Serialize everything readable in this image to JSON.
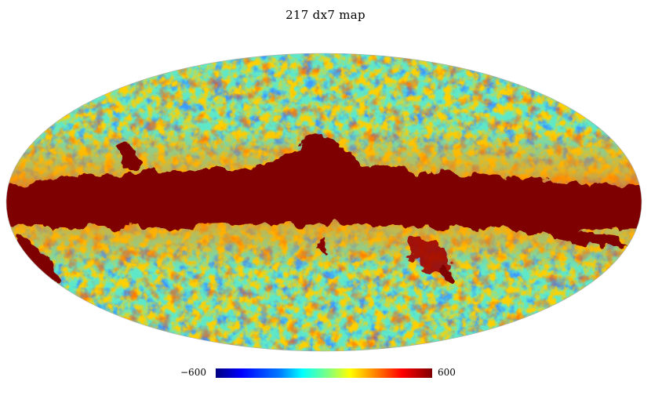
{
  "title": "217 dx7 map",
  "projection": "mollweide",
  "colormap": {
    "name": "jet",
    "min_label": "−600",
    "max_label": "600",
    "min_value": -600,
    "max_value": 600,
    "colors": [
      "#00007f",
      "#0000ff",
      "#007fff",
      "#00ffff",
      "#7fff7f",
      "#ffff00",
      "#ff7f00",
      "#ff0000",
      "#7f0000"
    ]
  },
  "background_color": "#ffffff"
}
